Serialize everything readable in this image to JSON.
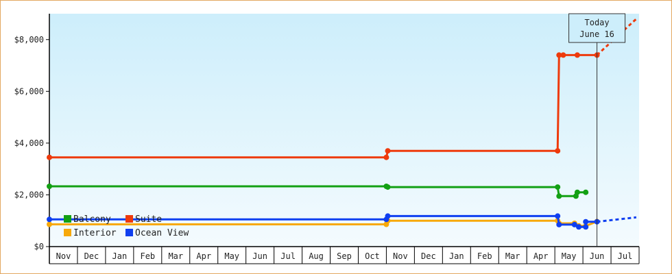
{
  "chart_data": {
    "type": "line",
    "step": true,
    "title": "",
    "xlabel": "",
    "ylabel": "",
    "ylim": [
      0,
      9000
    ],
    "y_ticks": [
      {
        "value": 0,
        "label": "$0"
      },
      {
        "value": 2000,
        "label": "$2,000"
      },
      {
        "value": 4000,
        "label": "$4,000"
      },
      {
        "value": 6000,
        "label": "$6,000"
      },
      {
        "value": 8000,
        "label": "$8,000"
      }
    ],
    "x_months": [
      "Nov",
      "Dec",
      "Jan",
      "Feb",
      "Mar",
      "Apr",
      "May",
      "Jun",
      "Jul",
      "Aug",
      "Sep",
      "Oct",
      "Nov",
      "Dec",
      "Jan",
      "Feb",
      "Mar",
      "Apr",
      "May",
      "Jun",
      "Jul"
    ],
    "x_unit": "months since start of first Nov",
    "today": {
      "line1": "Today",
      "line2": "June 16",
      "x": 19.5
    },
    "legend_placement": "bottom-left",
    "grid": false,
    "colors": {
      "background_top": "#cdeefb",
      "background_bottom": "#f4fbfe",
      "frame": "#e3a860"
    },
    "series": [
      {
        "name": "Suite",
        "color": "#ee3a0c",
        "points": [
          [
            0,
            3450
          ],
          [
            12,
            3450
          ],
          [
            12.05,
            3700
          ],
          [
            18.1,
            3700
          ],
          [
            18.15,
            7400
          ],
          [
            18.3,
            7400
          ],
          [
            18.8,
            7400
          ],
          [
            19.5,
            7400
          ]
        ],
        "forecast": [
          [
            19.5,
            7400
          ],
          [
            20.9,
            8800
          ]
        ]
      },
      {
        "name": "Balcony",
        "color": "#13a013",
        "points": [
          [
            0,
            2330
          ],
          [
            12,
            2330
          ],
          [
            12.05,
            2300
          ],
          [
            18.1,
            2300
          ],
          [
            18.15,
            1950
          ],
          [
            18.75,
            1950
          ],
          [
            18.8,
            2100
          ],
          [
            19.1,
            2100
          ]
        ],
        "forecast": []
      },
      {
        "name": "Interior",
        "color": "#f7a90a",
        "points": [
          [
            0,
            860
          ],
          [
            12,
            860
          ],
          [
            12.05,
            1000
          ],
          [
            18.1,
            1000
          ],
          [
            18.15,
            900
          ],
          [
            18.7,
            900
          ],
          [
            18.85,
            800
          ],
          [
            19.1,
            800
          ],
          [
            19.5,
            970
          ]
        ],
        "forecast": []
      },
      {
        "name": "Ocean View",
        "color": "#0f3ff0",
        "points": [
          [
            0,
            1050
          ],
          [
            12,
            1050
          ],
          [
            12.05,
            1180
          ],
          [
            18.1,
            1180
          ],
          [
            18.15,
            850
          ],
          [
            18.7,
            850
          ],
          [
            18.85,
            760
          ],
          [
            19.1,
            760
          ],
          [
            19.1,
            960
          ],
          [
            19.5,
            960
          ]
        ],
        "forecast": [
          [
            19.5,
            960
          ],
          [
            20.9,
            1130
          ]
        ]
      }
    ]
  }
}
